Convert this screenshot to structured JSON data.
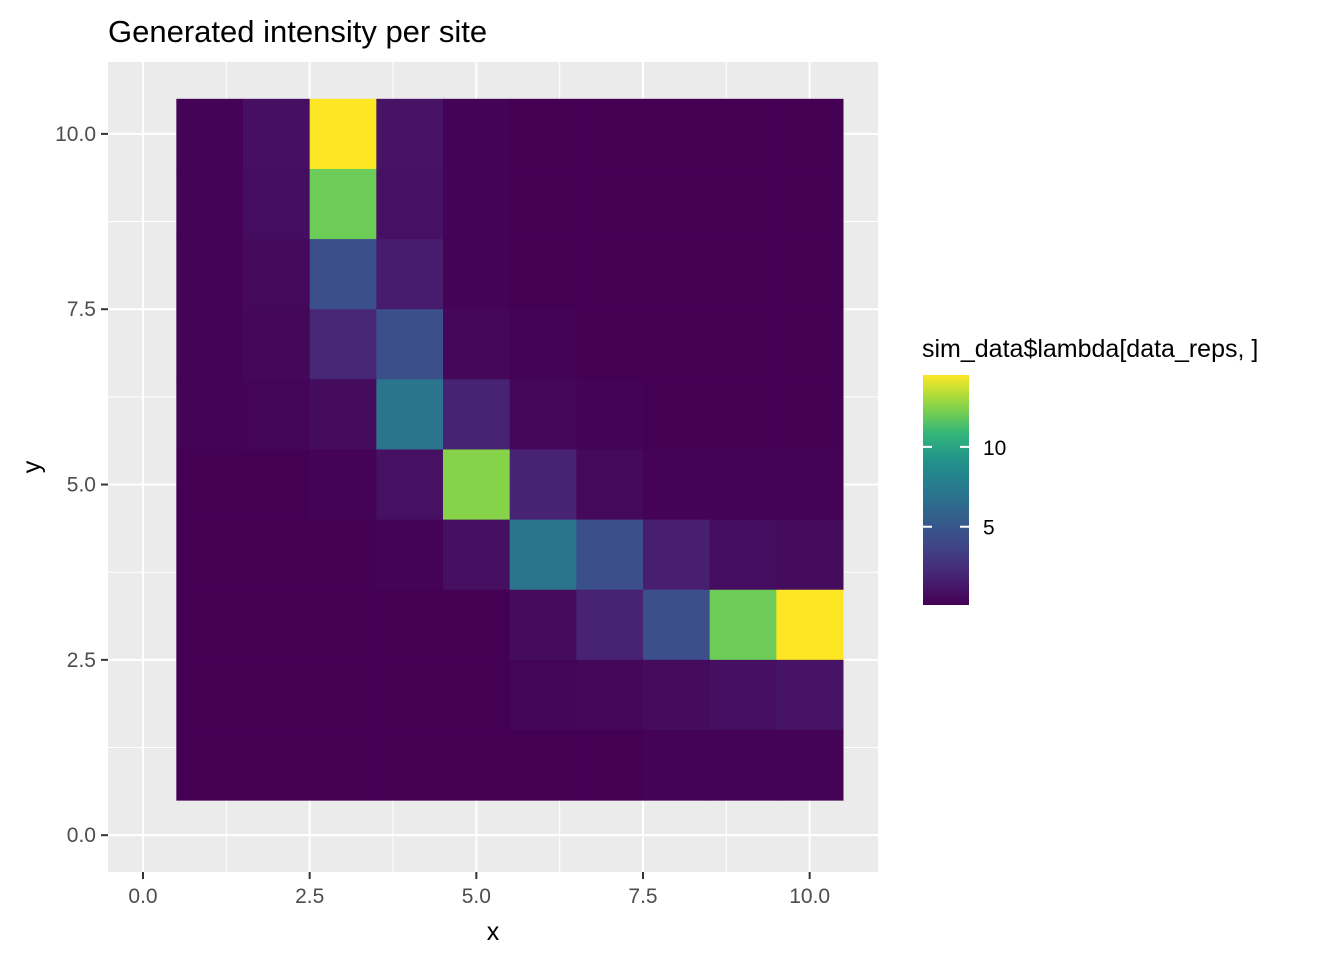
{
  "chart_data": {
    "type": "heatmap",
    "title": "Generated intensity per site",
    "xlabel": "x",
    "ylabel": "y",
    "xlim": [
      0,
      10.5
    ],
    "ylim": [
      0,
      10.5
    ],
    "x_ticks": [
      0,
      2.5,
      5,
      7.5,
      10
    ],
    "x_tick_labels": [
      "0.0",
      "2.5",
      "5.0",
      "7.5",
      "10.0"
    ],
    "y_ticks": [
      0,
      2.5,
      5,
      7.5,
      10
    ],
    "y_tick_labels": [
      "0.0",
      "2.5",
      "5.0",
      "7.5",
      "10.0"
    ],
    "grid": true,
    "x": [
      1,
      2,
      3,
      4,
      5,
      6,
      7,
      8,
      9,
      10
    ],
    "y": [
      10,
      9,
      8,
      7,
      6,
      5,
      4,
      3,
      2,
      1
    ],
    "values": [
      [
        0.2,
        0.8,
        14.5,
        1.0,
        0.2,
        0.1,
        0.1,
        0.1,
        0.1,
        0.1
      ],
      [
        0.2,
        0.7,
        12.0,
        0.9,
        0.2,
        0.1,
        0.1,
        0.1,
        0.1,
        0.1
      ],
      [
        0.2,
        0.5,
        4.5,
        1.5,
        0.2,
        0.1,
        0.1,
        0.1,
        0.1,
        0.1
      ],
      [
        0.2,
        0.4,
        2.0,
        4.5,
        0.4,
        0.2,
        0.1,
        0.1,
        0.1,
        0.1
      ],
      [
        0.2,
        0.3,
        0.6,
        7.0,
        1.8,
        0.4,
        0.2,
        0.1,
        0.1,
        0.1
      ],
      [
        0.1,
        0.1,
        0.2,
        0.9,
        12.5,
        1.8,
        0.5,
        0.2,
        0.2,
        0.2
      ],
      [
        0.1,
        0.1,
        0.1,
        0.2,
        0.8,
        7.0,
        4.5,
        1.6,
        0.7,
        0.6
      ],
      [
        0.1,
        0.1,
        0.1,
        0.1,
        0.1,
        0.6,
        1.8,
        4.5,
        12.0,
        14.5
      ],
      [
        0.1,
        0.1,
        0.1,
        0.1,
        0.1,
        0.3,
        0.4,
        0.6,
        0.8,
        1.0
      ],
      [
        0.1,
        0.1,
        0.1,
        0.1,
        0.1,
        0.1,
        0.1,
        0.2,
        0.2,
        0.2
      ]
    ],
    "colorscale": "viridis",
    "colorbar": {
      "title": "sim_data$lambda[data_reps, ]",
      "range": [
        0.1,
        14.5
      ],
      "ticks": [
        5,
        10
      ],
      "tick_labels": [
        "5",
        "10"
      ],
      "placement": "right"
    }
  }
}
